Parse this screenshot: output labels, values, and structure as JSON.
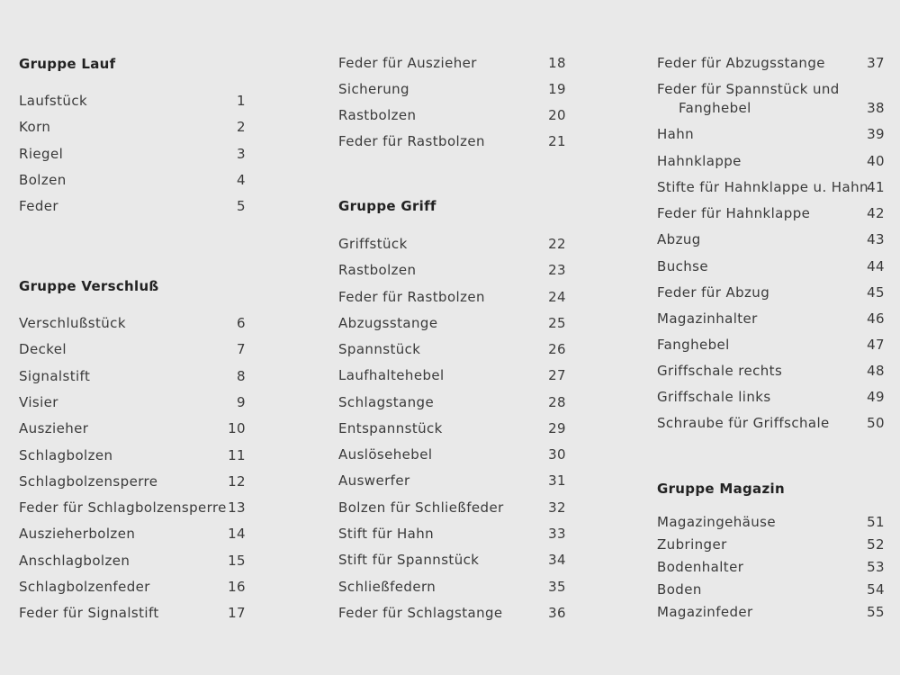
{
  "columns": [
    {
      "sections": [
        {
          "heading": "Gruppe Lauf",
          "items": [
            {
              "label": "Laufstück",
              "num": "1"
            },
            {
              "label": "Korn",
              "num": "2"
            },
            {
              "label": "Riegel",
              "num": "3"
            },
            {
              "label": "Bolzen",
              "num": "4"
            },
            {
              "label": "Feder",
              "num": "5"
            }
          ]
        },
        {
          "heading": "Gruppe Verschluß",
          "items": [
            {
              "label": "Verschlußstück",
              "num": "6"
            },
            {
              "label": "Deckel",
              "num": "7"
            },
            {
              "label": "Signalstift",
              "num": "8"
            },
            {
              "label": "Visier",
              "num": "9"
            },
            {
              "label": "Auszieher",
              "num": "10"
            },
            {
              "label": "Schlagbolzen",
              "num": "11"
            },
            {
              "label": "Schlagbolzensperre",
              "num": "12"
            },
            {
              "label": "Feder für Schlagbolzensperre",
              "num": "13"
            },
            {
              "label": "Auszieherbolzen",
              "num": "14"
            },
            {
              "label": "Anschlagbolzen",
              "num": "15"
            },
            {
              "label": "Schlagbolzenfeder",
              "num": "16"
            },
            {
              "label": "Feder für Signalstift",
              "num": "17"
            }
          ]
        }
      ]
    },
    {
      "sections": [
        {
          "heading": "",
          "items": [
            {
              "label": "Feder für Auszieher",
              "num": "18"
            },
            {
              "label": "Sicherung",
              "num": "19"
            },
            {
              "label": "Rastbolzen",
              "num": "20"
            },
            {
              "label": "Feder für Rastbolzen",
              "num": "21"
            }
          ]
        },
        {
          "heading": "Gruppe Griff",
          "items": [
            {
              "label": "Griffstück",
              "num": "22"
            },
            {
              "label": "Rastbolzen",
              "num": "23"
            },
            {
              "label": "Feder für Rastbolzen",
              "num": "24"
            },
            {
              "label": "Abzugsstange",
              "num": "25"
            },
            {
              "label": "Spannstück",
              "num": "26"
            },
            {
              "label": "Laufhaltehebel",
              "num": "27"
            },
            {
              "label": "Schlagstange",
              "num": "28"
            },
            {
              "label": "Entspannstück",
              "num": "29"
            },
            {
              "label": "Auslösehebel",
              "num": "30"
            },
            {
              "label": "Auswerfer",
              "num": "31"
            },
            {
              "label": "Bolzen für Schließfeder",
              "num": "32"
            },
            {
              "label": "Stift für Hahn",
              "num": "33"
            },
            {
              "label": "Stift für Spannstück",
              "num": "34"
            },
            {
              "label": "Schließfedern",
              "num": "35"
            },
            {
              "label": "Feder für Schlagstange",
              "num": "36"
            }
          ]
        }
      ]
    },
    {
      "sections": [
        {
          "heading": "",
          "items": [
            {
              "label": "Feder für Abzugsstange",
              "num": "37"
            },
            {
              "label": "Feder für Spannstück und",
              "cont": "Fanghebel",
              "num": "38"
            },
            {
              "label": "Hahn",
              "num": "39"
            },
            {
              "label": "Hahnklappe",
              "num": "40"
            },
            {
              "label": "Stifte für Hahnklappe u. Hahn",
              "num": "41"
            },
            {
              "label": "Feder für Hahnklappe",
              "num": "42"
            },
            {
              "label": "Abzug",
              "num": "43"
            },
            {
              "label": "Buchse",
              "num": "44"
            },
            {
              "label": "Feder für Abzug",
              "num": "45"
            },
            {
              "label": "Magazinhalter",
              "num": "46"
            },
            {
              "label": "Fanghebel",
              "num": "47"
            },
            {
              "label": "Griffschale rechts",
              "num": "48"
            },
            {
              "label": "Griffschale links",
              "num": "49"
            },
            {
              "label": "Schraube für Griffschale",
              "num": "50"
            }
          ]
        },
        {
          "heading": "Gruppe Magazin",
          "items": [
            {
              "label": "Magazingehäuse",
              "num": "51"
            },
            {
              "label": "Zubringer",
              "num": "52"
            },
            {
              "label": "Bodenhalter",
              "num": "53"
            },
            {
              "label": "Boden",
              "num": "54"
            },
            {
              "label": "Magazinfeder",
              "num": "55"
            }
          ]
        }
      ]
    }
  ]
}
